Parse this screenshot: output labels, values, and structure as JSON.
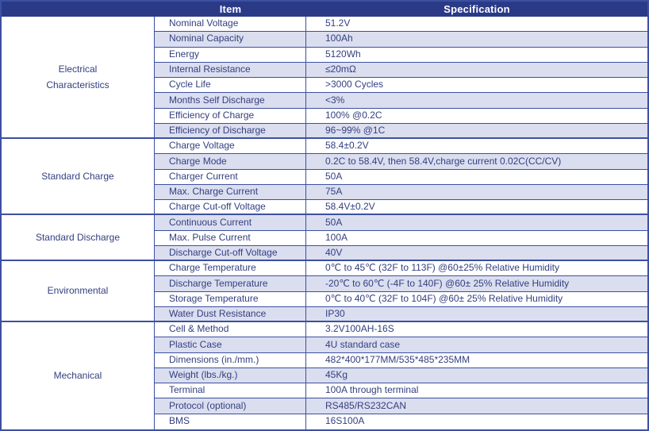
{
  "colors": {
    "header_bg": "#2B3A87",
    "header_text": "#FFFFFF",
    "row_alt_bg": "#DBDEEF",
    "border": "#3C50A1",
    "text": "#333F80"
  },
  "header": {
    "item_label": "Item",
    "specification_label": "Specification"
  },
  "table": {
    "sections": [
      {
        "label": "Electrical\nCharacteristics",
        "rows": [
          {
            "item": "Nominal Voltage",
            "spec": "51.2V"
          },
          {
            "item": "Nominal Capacity",
            "spec": "100Ah"
          },
          {
            "item": "Energy",
            "spec": "5120Wh"
          },
          {
            "item": "Internal Resistance",
            "spec": "≤20mΩ"
          },
          {
            "item": "Cycle Life",
            "spec": ">3000 Cycles"
          },
          {
            "item": "Months Self Discharge",
            "spec": "<3%"
          },
          {
            "item": "Efficiency of Charge",
            "spec": "100% @0.2C"
          },
          {
            "item": "Efficiency of Discharge",
            "spec": "96~99% @1C"
          }
        ]
      },
      {
        "label": "Standard Charge",
        "rows": [
          {
            "item": "Charge Voltage",
            "spec": "58.4±0.2V"
          },
          {
            "item": "Charge Mode",
            "spec": "0.2C to 58.4V, then 58.4V,charge current 0.02C(CC/CV)"
          },
          {
            "item": "Charger Current",
            "spec": "50A"
          },
          {
            "item": "Max. Charge Current",
            "spec": "75A"
          },
          {
            "item": "Charge Cut-off Voltage",
            "spec": "58.4V±0.2V"
          }
        ]
      },
      {
        "label": "Standard Discharge",
        "rows": [
          {
            "item": "Continuous Current",
            "spec": "50A"
          },
          {
            "item": "Max. Pulse Current",
            "spec": "100A"
          },
          {
            "item": "Discharge Cut-off Voltage",
            "spec": "40V"
          }
        ]
      },
      {
        "label": "Environmental",
        "rows": [
          {
            "item": "Charge Temperature",
            "spec": "0℃ to 45℃ (32F to 113F) @60±25% Relative Humidity"
          },
          {
            "item": "Discharge Temperature",
            "spec": "-20℃ to 60℃ (-4F to 140F) @60± 25% Relative Humidity"
          },
          {
            "item": "Storage Temperature",
            "spec": "0℃ to 40℃ (32F to 104F) @60± 25% Relative Humidity"
          },
          {
            "item": "Water Dust Resistance",
            "spec": "IP30"
          }
        ]
      },
      {
        "label": "Mechanical",
        "rows": [
          {
            "item": "Cell & Method",
            "spec": "3.2V100AH-16S"
          },
          {
            "item": "Plastic Case",
            "spec": "4U standard case"
          },
          {
            "item": "Dimensions (in./mm.)",
            "spec": "482*400*177MM/535*485*235MM"
          },
          {
            "item": "Weight (lbs./kg.)",
            "spec": "45Kg"
          },
          {
            "item": "Terminal",
            "spec": "100A through terminal"
          },
          {
            "item": "Protocol (optional)",
            "spec": "RS485/RS232CAN"
          },
          {
            "item": "BMS",
            "spec": "16S100A"
          }
        ]
      }
    ]
  }
}
